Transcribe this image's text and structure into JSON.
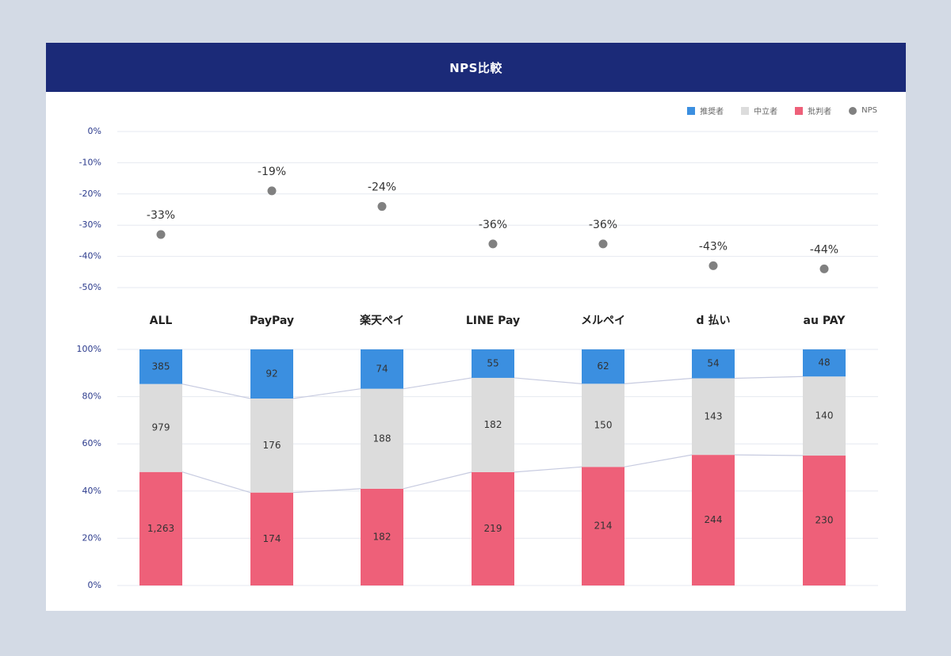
{
  "header": {
    "title": "NPS比較"
  },
  "legend": [
    {
      "label": "推奨者",
      "color": "#3b8fe0",
      "shape": "square"
    },
    {
      "label": "中立者",
      "color": "#dcdcdc",
      "shape": "square"
    },
    {
      "label": "批判者",
      "color": "#ee6079",
      "shape": "square"
    },
    {
      "label": "NPS",
      "color": "#808080",
      "shape": "circle"
    }
  ],
  "chart_data": [
    {
      "type": "scatter",
      "categories": [
        "ALL",
        "PayPay",
        "楽天ペイ",
        "LINE Pay",
        "メルペイ",
        "d 払い",
        "au PAY"
      ],
      "series": [
        {
          "name": "NPS",
          "values": [
            -33,
            -19,
            -24,
            -36,
            -36,
            -43,
            -44
          ],
          "labels": [
            "-33%",
            "-19%",
            "-24%",
            "-36%",
            "-36%",
            "-43%",
            "-44%"
          ]
        }
      ],
      "ylim": [
        -50,
        0
      ],
      "yticks": [
        "0%",
        "-10%",
        "-20%",
        "-30%",
        "-40%",
        "-50%"
      ],
      "grid": true
    },
    {
      "type": "bar",
      "stacked": "percent",
      "categories": [
        "ALL",
        "PayPay",
        "楽天ペイ",
        "LINE Pay",
        "メルペイ",
        "d 払い",
        "au PAY"
      ],
      "series": [
        {
          "name": "批判者",
          "values": [
            1263,
            174,
            182,
            219,
            214,
            244,
            230
          ],
          "labels": [
            "1,263",
            "174",
            "182",
            "219",
            "214",
            "244",
            "230"
          ]
        },
        {
          "name": "中立者",
          "values": [
            979,
            176,
            188,
            182,
            150,
            143,
            140
          ],
          "labels": [
            "979",
            "176",
            "188",
            "182",
            "150",
            "143",
            "140"
          ]
        },
        {
          "name": "推奨者",
          "values": [
            385,
            92,
            74,
            55,
            62,
            54,
            48
          ],
          "labels": [
            "385",
            "92",
            "74",
            "55",
            "62",
            "54",
            "48"
          ]
        }
      ],
      "ylim": [
        0,
        100
      ],
      "yticks": [
        "0%",
        "20%",
        "40%",
        "60%",
        "80%",
        "100%"
      ],
      "grid": true
    }
  ]
}
